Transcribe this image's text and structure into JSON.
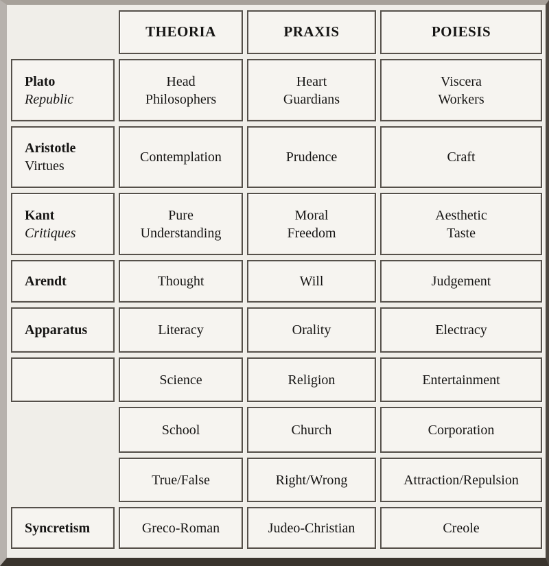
{
  "colors": {
    "page_background": "#f0eee9",
    "cell_background": "#f6f4f0",
    "cell_border": "#55504a",
    "text": "#161514",
    "frame_top": "#a7a19a",
    "frame_left": "#b7b2ad",
    "frame_right": "#4d4740",
    "frame_bottom": "#3a342d"
  },
  "header": {
    "theoria": "THEORIA",
    "praxis": "PRAXIS",
    "poiesis": "POIESIS"
  },
  "rows": [
    {
      "label1": "Plato",
      "label2": "Republic",
      "theoria": "Head\nPhilosophers",
      "praxis": "Heart\nGuardians",
      "poiesis": "Viscera\nWorkers"
    },
    {
      "label1": "Aristotle",
      "label2": "Virtues",
      "theoria": "Contemplation",
      "praxis": "Prudence",
      "poiesis": "Craft"
    },
    {
      "label1": "Kant",
      "label2": "Critiques",
      "theoria": "Pure\nUnderstanding",
      "praxis": "Moral\nFreedom",
      "poiesis": "Aesthetic\nTaste"
    },
    {
      "label1": "Arendt",
      "theoria": "Thought",
      "praxis": "Will",
      "poiesis": "Judgement"
    },
    {
      "label1": "Apparatus",
      "theoria": "Literacy",
      "praxis": "Orality",
      "poiesis": "Electracy"
    },
    {
      "label1": "",
      "theoria": "Science",
      "praxis": "Religion",
      "poiesis": "Entertainment"
    },
    {
      "theoria": "School",
      "praxis": "Church",
      "poiesis": "Corporation"
    },
    {
      "theoria": "True/False",
      "praxis": "Right/Wrong",
      "poiesis": "Attraction/Repulsion"
    },
    {
      "label1": "Syncretism",
      "theoria": "Greco-Roman",
      "praxis": "Judeo-Christian",
      "poiesis": "Creole"
    }
  ]
}
